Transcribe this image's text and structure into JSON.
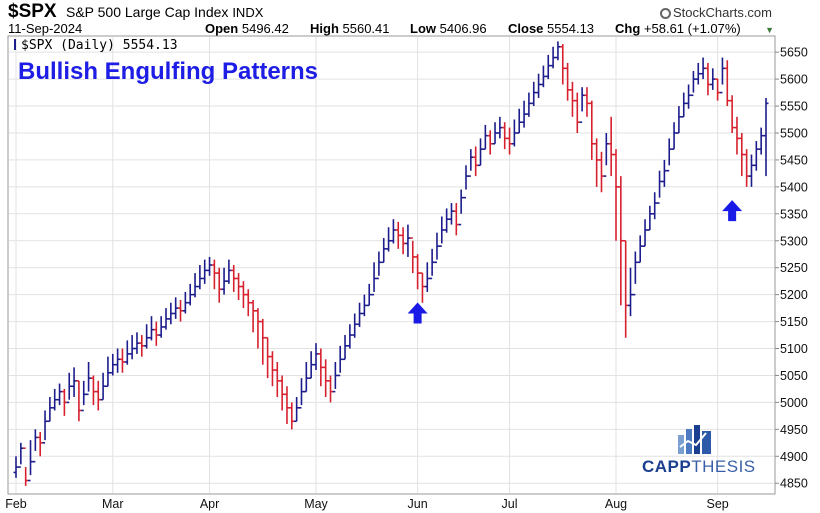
{
  "header": {
    "ticker": "$SPX",
    "full_name": "S&P 500 Large Cap Index",
    "exchange": "INDX",
    "brand": "StockCharts.com",
    "date": "11-Sep-2024",
    "open_label": "Open",
    "open": "5496.42",
    "high_label": "High",
    "high": "5560.41",
    "low_label": "Low",
    "low": "5406.96",
    "close_label": "Close",
    "close": "5554.13",
    "chg_label": "Chg",
    "chg": "+58.61 (+1.07%)"
  },
  "legend": {
    "text": "$SPX (Daily) 5554.13"
  },
  "chart_data": {
    "type": "ohlc",
    "title": "Bullish Engulfing Patterns",
    "series_name": "$SPX (Daily)",
    "y_axis_side": "right",
    "ylim": [
      4830,
      5680
    ],
    "y_ticks": [
      4850,
      4900,
      4950,
      5000,
      5050,
      5100,
      5150,
      5200,
      5250,
      5300,
      5350,
      5400,
      5450,
      5500,
      5550,
      5600,
      5650
    ],
    "x_ticks": [
      {
        "label": "Feb",
        "index": 0
      },
      {
        "label": "Mar",
        "index": 20
      },
      {
        "label": "Apr",
        "index": 40
      },
      {
        "label": "May",
        "index": 62
      },
      {
        "label": "Jun",
        "index": 83
      },
      {
        "label": "Jul",
        "index": 102
      },
      {
        "label": "Aug",
        "index": 124
      },
      {
        "label": "Sep",
        "index": 145
      }
    ],
    "colors": {
      "up": "#1c1c8c",
      "down": "#d6202e",
      "annotation": "#1a1ae6",
      "grid": "#e2e2e2"
    },
    "grid": true,
    "annotations": [
      {
        "type": "arrow-up",
        "index": 83,
        "y": 5165
      },
      {
        "type": "arrow-up",
        "index": 148,
        "y": 5355
      }
    ],
    "close": [
      4880,
      4915,
      4855,
      4890,
      4935,
      4925,
      4965,
      4990,
      5005,
      5020,
      5000,
      5030,
      5040,
      4985,
      5015,
      5045,
      5020,
      5005,
      5030,
      5055,
      5070,
      5080,
      5075,
      5090,
      5100,
      5110,
      5105,
      5120,
      5135,
      5125,
      5140,
      5155,
      5165,
      5175,
      5170,
      5185,
      5200,
      5215,
      5230,
      5245,
      5255,
      5240,
      5210,
      5225,
      5245,
      5230,
      5215,
      5200,
      5185,
      5170,
      5150,
      5120,
      5085,
      5060,
      5040,
      5015,
      4990,
      4965,
      4990,
      5020,
      5045,
      5070,
      5090,
      5065,
      5040,
      5020,
      5050,
      5080,
      5105,
      5125,
      5145,
      5165,
      5180,
      5200,
      5230,
      5260,
      5285,
      5300,
      5320,
      5310,
      5295,
      5305,
      5270,
      5240,
      5215,
      5230,
      5260,
      5290,
      5320,
      5340,
      5355,
      5330,
      5380,
      5420,
      5455,
      5440,
      5470,
      5495,
      5480,
      5500,
      5510,
      5490,
      5480,
      5500,
      5520,
      5535,
      5555,
      5575,
      5590,
      5605,
      5625,
      5640,
      5660,
      5620,
      5580,
      5560,
      5520,
      5570,
      5555,
      5480,
      5450,
      5420,
      5480,
      5460,
      5400,
      5300,
      5180,
      5200,
      5260,
      5290,
      5320,
      5350,
      5370,
      5410,
      5430,
      5470,
      5500,
      5530,
      5555,
      5570,
      5600,
      5610,
      5620,
      5590,
      5600,
      5575,
      5620,
      5560,
      5510,
      5490,
      5460,
      5420,
      5440,
      5470,
      5495,
      5555
    ],
    "high": [
      4900,
      4925,
      4880,
      4930,
      4950,
      4945,
      4985,
      5010,
      5025,
      5035,
      5025,
      5055,
      5065,
      5040,
      5040,
      5075,
      5050,
      5040,
      5055,
      5085,
      5090,
      5100,
      5100,
      5115,
      5125,
      5130,
      5125,
      5145,
      5160,
      5150,
      5160,
      5175,
      5185,
      5195,
      5190,
      5205,
      5220,
      5240,
      5255,
      5265,
      5270,
      5265,
      5250,
      5250,
      5265,
      5255,
      5240,
      5225,
      5210,
      5190,
      5175,
      5155,
      5120,
      5095,
      5075,
      5050,
      5030,
      5000,
      5010,
      5045,
      5075,
      5095,
      5110,
      5100,
      5080,
      5050,
      5075,
      5105,
      5125,
      5145,
      5165,
      5185,
      5200,
      5220,
      5260,
      5280,
      5305,
      5325,
      5340,
      5335,
      5325,
      5330,
      5300,
      5275,
      5240,
      5260,
      5285,
      5315,
      5345,
      5360,
      5370,
      5370,
      5395,
      5440,
      5470,
      5475,
      5490,
      5515,
      5505,
      5520,
      5530,
      5520,
      5510,
      5525,
      5545,
      5560,
      5575,
      5595,
      5610,
      5625,
      5645,
      5660,
      5670,
      5665,
      5630,
      5595,
      5575,
      5585,
      5585,
      5560,
      5490,
      5465,
      5500,
      5530,
      5470,
      5420,
      5300,
      5250,
      5280,
      5310,
      5340,
      5365,
      5390,
      5430,
      5450,
      5490,
      5520,
      5550,
      5575,
      5590,
      5615,
      5630,
      5640,
      5630,
      5620,
      5600,
      5640,
      5635,
      5570,
      5530,
      5500,
      5470,
      5460,
      5485,
      5510,
      5565
    ],
    "low": [
      4860,
      4885,
      4845,
      4865,
      4910,
      4900,
      4930,
      4965,
      4985,
      4995,
      4975,
      5005,
      5010,
      4965,
      4995,
      5020,
      4995,
      4985,
      5005,
      5030,
      5050,
      5055,
      5055,
      5070,
      5080,
      5090,
      5085,
      5100,
      5115,
      5105,
      5120,
      5135,
      5145,
      5155,
      5150,
      5165,
      5180,
      5195,
      5210,
      5220,
      5235,
      5210,
      5185,
      5200,
      5220,
      5205,
      5190,
      5175,
      5160,
      5130,
      5100,
      5070,
      5045,
      5030,
      5010,
      4985,
      4960,
      4950,
      4965,
      4995,
      5020,
      5045,
      5060,
      5030,
      5010,
      5000,
      5025,
      5055,
      5080,
      5100,
      5120,
      5140,
      5160,
      5180,
      5205,
      5235,
      5260,
      5280,
      5295,
      5285,
      5275,
      5270,
      5240,
      5210,
      5185,
      5205,
      5235,
      5265,
      5295,
      5315,
      5330,
      5310,
      5350,
      5395,
      5430,
      5420,
      5440,
      5470,
      5460,
      5480,
      5490,
      5470,
      5460,
      5475,
      5500,
      5510,
      5530,
      5550,
      5565,
      5585,
      5600,
      5620,
      5635,
      5590,
      5560,
      5530,
      5500,
      5540,
      5530,
      5450,
      5400,
      5390,
      5440,
      5420,
      5300,
      5180,
      5120,
      5160,
      5220,
      5260,
      5290,
      5320,
      5340,
      5380,
      5400,
      5440,
      5470,
      5500,
      5530,
      5545,
      5575,
      5590,
      5600,
      5570,
      5580,
      5560,
      5590,
      5550,
      5500,
      5460,
      5420,
      5400,
      5400,
      5430,
      5460,
      5420
    ]
  }
}
